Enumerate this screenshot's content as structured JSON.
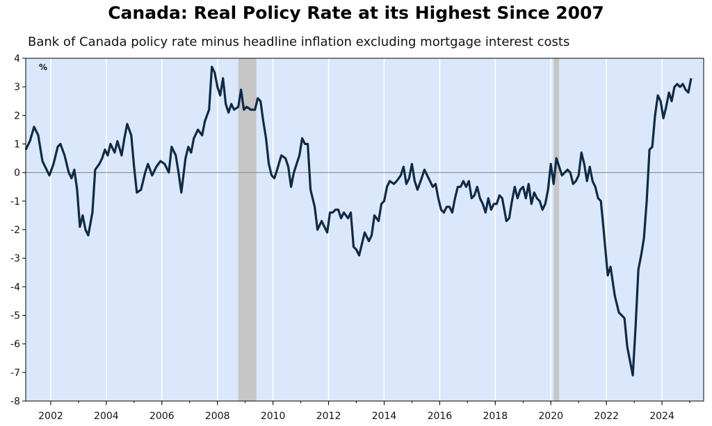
{
  "chart_data": {
    "type": "line",
    "title": "Canada: Real Policy Rate at its Highest Since 2007",
    "subtitle": "Bank of Canada policy rate minus headline inflation excluding mortgage interest costs",
    "unit_label": "%",
    "xlim": [
      2001.1,
      2025.5
    ],
    "ylim": [
      -8,
      4
    ],
    "y_ticks": [
      4,
      3,
      2,
      1,
      0,
      -1,
      -2,
      -3,
      -4,
      -5,
      -6,
      -7,
      -8
    ],
    "x_tick_labels": [
      "2002",
      "2004",
      "2006",
      "2008",
      "2010",
      "2012",
      "2014",
      "2016",
      "2018",
      "2020",
      "2022",
      "2024"
    ],
    "grid": "vertical lines at each year label",
    "zero_line": true,
    "colors": {
      "background": "#dbe8fb",
      "line": "#0f2a44",
      "recession": "#c6c6c6",
      "zero_line": "#888888"
    },
    "recession_shading": [
      {
        "start": 2008.75,
        "end": 2009.4
      },
      {
        "start": 2020.1,
        "end": 2020.3
      }
    ],
    "series": [
      {
        "values": [
          [
            2001.1,
            0.8
          ],
          [
            2001.25,
            1.1
          ],
          [
            2001.4,
            1.6
          ],
          [
            2001.55,
            1.3
          ],
          [
            2001.7,
            0.4
          ],
          [
            2001.85,
            0.1
          ],
          [
            2001.95,
            -0.1
          ],
          [
            2002.1,
            0.3
          ],
          [
            2002.25,
            0.9
          ],
          [
            2002.35,
            1.0
          ],
          [
            2002.5,
            0.6
          ],
          [
            2002.65,
            0.0
          ],
          [
            2002.75,
            -0.2
          ],
          [
            2002.85,
            0.1
          ],
          [
            2002.95,
            -0.6
          ],
          [
            2003.05,
            -1.9
          ],
          [
            2003.15,
            -1.5
          ],
          [
            2003.25,
            -2.0
          ],
          [
            2003.35,
            -2.2
          ],
          [
            2003.5,
            -1.4
          ],
          [
            2003.6,
            0.1
          ],
          [
            2003.75,
            0.3
          ],
          [
            2003.85,
            0.5
          ],
          [
            2003.95,
            0.8
          ],
          [
            2004.05,
            0.6
          ],
          [
            2004.15,
            1.0
          ],
          [
            2004.3,
            0.7
          ],
          [
            2004.4,
            1.1
          ],
          [
            2004.55,
            0.6
          ],
          [
            2004.65,
            1.2
          ],
          [
            2004.75,
            1.7
          ],
          [
            2004.9,
            1.3
          ],
          [
            2005.0,
            0.2
          ],
          [
            2005.1,
            -0.7
          ],
          [
            2005.25,
            -0.6
          ],
          [
            2005.4,
            0.0
          ],
          [
            2005.5,
            0.3
          ],
          [
            2005.65,
            -0.1
          ],
          [
            2005.8,
            0.2
          ],
          [
            2005.95,
            0.4
          ],
          [
            2006.1,
            0.3
          ],
          [
            2006.25,
            0.0
          ],
          [
            2006.35,
            0.9
          ],
          [
            2006.5,
            0.6
          ],
          [
            2006.6,
            0.0
          ],
          [
            2006.7,
            -0.7
          ],
          [
            2006.85,
            0.5
          ],
          [
            2006.95,
            0.9
          ],
          [
            2007.05,
            0.7
          ],
          [
            2007.15,
            1.2
          ],
          [
            2007.3,
            1.5
          ],
          [
            2007.45,
            1.3
          ],
          [
            2007.55,
            1.8
          ],
          [
            2007.7,
            2.2
          ],
          [
            2007.8,
            3.7
          ],
          [
            2007.9,
            3.5
          ],
          [
            2008.0,
            3.0
          ],
          [
            2008.1,
            2.7
          ],
          [
            2008.2,
            3.3
          ],
          [
            2008.3,
            2.4
          ],
          [
            2008.4,
            2.1
          ],
          [
            2008.5,
            2.4
          ],
          [
            2008.6,
            2.2
          ],
          [
            2008.75,
            2.3
          ],
          [
            2008.85,
            2.9
          ],
          [
            2008.95,
            2.2
          ],
          [
            2009.05,
            2.3
          ],
          [
            2009.2,
            2.2
          ],
          [
            2009.35,
            2.2
          ],
          [
            2009.45,
            2.6
          ],
          [
            2009.55,
            2.5
          ],
          [
            2009.65,
            1.8
          ],
          [
            2009.75,
            1.2
          ],
          [
            2009.85,
            0.3
          ],
          [
            2009.95,
            -0.1
          ],
          [
            2010.05,
            -0.2
          ],
          [
            2010.15,
            0.1
          ],
          [
            2010.3,
            0.6
          ],
          [
            2010.45,
            0.5
          ],
          [
            2010.55,
            0.2
          ],
          [
            2010.65,
            -0.5
          ],
          [
            2010.75,
            0.0
          ],
          [
            2010.85,
            0.3
          ],
          [
            2010.95,
            0.6
          ],
          [
            2011.05,
            1.2
          ],
          [
            2011.15,
            1.0
          ],
          [
            2011.25,
            1.0
          ],
          [
            2011.35,
            -0.6
          ],
          [
            2011.5,
            -1.2
          ],
          [
            2011.6,
            -2.0
          ],
          [
            2011.75,
            -1.7
          ],
          [
            2011.85,
            -1.9
          ],
          [
            2011.95,
            -2.1
          ],
          [
            2012.05,
            -1.4
          ],
          [
            2012.15,
            -1.4
          ],
          [
            2012.25,
            -1.3
          ],
          [
            2012.35,
            -1.3
          ],
          [
            2012.45,
            -1.6
          ],
          [
            2012.55,
            -1.4
          ],
          [
            2012.7,
            -1.6
          ],
          [
            2012.8,
            -1.4
          ],
          [
            2012.9,
            -2.6
          ],
          [
            2013.0,
            -2.7
          ],
          [
            2013.1,
            -2.9
          ],
          [
            2013.2,
            -2.5
          ],
          [
            2013.3,
            -2.1
          ],
          [
            2013.45,
            -2.4
          ],
          [
            2013.55,
            -2.2
          ],
          [
            2013.65,
            -1.5
          ],
          [
            2013.8,
            -1.7
          ],
          [
            2013.9,
            -1.1
          ],
          [
            2014.0,
            -1.0
          ],
          [
            2014.1,
            -0.5
          ],
          [
            2014.2,
            -0.3
          ],
          [
            2014.35,
            -0.4
          ],
          [
            2014.45,
            -0.3
          ],
          [
            2014.6,
            -0.1
          ],
          [
            2014.7,
            0.2
          ],
          [
            2014.8,
            -0.4
          ],
          [
            2014.9,
            -0.2
          ],
          [
            2015.0,
            0.3
          ],
          [
            2015.1,
            -0.3
          ],
          [
            2015.2,
            -0.6
          ],
          [
            2015.35,
            -0.2
          ],
          [
            2015.45,
            0.1
          ],
          [
            2015.55,
            -0.1
          ],
          [
            2015.65,
            -0.3
          ],
          [
            2015.75,
            -0.5
          ],
          [
            2015.85,
            -0.4
          ],
          [
            2015.95,
            -0.9
          ],
          [
            2016.05,
            -1.3
          ],
          [
            2016.15,
            -1.4
          ],
          [
            2016.25,
            -1.2
          ],
          [
            2016.35,
            -1.2
          ],
          [
            2016.45,
            -1.4
          ],
          [
            2016.55,
            -0.9
          ],
          [
            2016.65,
            -0.5
          ],
          [
            2016.75,
            -0.5
          ],
          [
            2016.85,
            -0.3
          ],
          [
            2016.95,
            -0.5
          ],
          [
            2017.05,
            -0.3
          ],
          [
            2017.15,
            -0.9
          ],
          [
            2017.25,
            -0.8
          ],
          [
            2017.35,
            -0.5
          ],
          [
            2017.45,
            -0.9
          ],
          [
            2017.55,
            -1.1
          ],
          [
            2017.65,
            -1.4
          ],
          [
            2017.75,
            -0.9
          ],
          [
            2017.85,
            -1.3
          ],
          [
            2017.95,
            -1.1
          ],
          [
            2018.05,
            -1.1
          ],
          [
            2018.15,
            -0.8
          ],
          [
            2018.25,
            -0.9
          ],
          [
            2018.4,
            -1.7
          ],
          [
            2018.5,
            -1.6
          ],
          [
            2018.6,
            -1.0
          ],
          [
            2018.7,
            -0.5
          ],
          [
            2018.8,
            -0.9
          ],
          [
            2018.9,
            -0.6
          ],
          [
            2019.0,
            -0.5
          ],
          [
            2019.1,
            -0.9
          ],
          [
            2019.2,
            -0.4
          ],
          [
            2019.3,
            -1.1
          ],
          [
            2019.4,
            -0.7
          ],
          [
            2019.5,
            -0.9
          ],
          [
            2019.6,
            -1.0
          ],
          [
            2019.7,
            -1.3
          ],
          [
            2019.8,
            -1.1
          ],
          [
            2019.9,
            -0.6
          ],
          [
            2020.0,
            0.3
          ],
          [
            2020.1,
            -0.4
          ],
          [
            2020.2,
            0.5
          ],
          [
            2020.3,
            0.2
          ],
          [
            2020.4,
            -0.1
          ],
          [
            2020.5,
            0.0
          ],
          [
            2020.6,
            0.1
          ],
          [
            2020.7,
            0.0
          ],
          [
            2020.8,
            -0.4
          ],
          [
            2020.9,
            -0.3
          ],
          [
            2021.0,
            -0.1
          ],
          [
            2021.1,
            0.7
          ],
          [
            2021.2,
            0.3
          ],
          [
            2021.3,
            -0.3
          ],
          [
            2021.4,
            0.2
          ],
          [
            2021.5,
            -0.3
          ],
          [
            2021.6,
            -0.5
          ],
          [
            2021.7,
            -0.9
          ],
          [
            2021.8,
            -1.0
          ],
          [
            2021.9,
            -2.0
          ],
          [
            2022.05,
            -3.6
          ],
          [
            2022.15,
            -3.3
          ],
          [
            2022.3,
            -4.3
          ],
          [
            2022.45,
            -4.9
          ],
          [
            2022.55,
            -5.0
          ],
          [
            2022.65,
            -5.1
          ],
          [
            2022.75,
            -6.1
          ],
          [
            2022.85,
            -6.6
          ],
          [
            2022.95,
            -7.1
          ],
          [
            2023.05,
            -5.4
          ],
          [
            2023.15,
            -3.4
          ],
          [
            2023.25,
            -2.9
          ],
          [
            2023.35,
            -2.3
          ],
          [
            2023.45,
            -1.0
          ],
          [
            2023.55,
            0.8
          ],
          [
            2023.65,
            0.9
          ],
          [
            2023.75,
            2.0
          ],
          [
            2023.85,
            2.7
          ],
          [
            2023.95,
            2.5
          ],
          [
            2024.05,
            1.9
          ],
          [
            2024.15,
            2.3
          ],
          [
            2024.25,
            2.8
          ],
          [
            2024.35,
            2.5
          ],
          [
            2024.45,
            3.0
          ],
          [
            2024.55,
            3.1
          ],
          [
            2024.65,
            3.0
          ],
          [
            2024.75,
            3.1
          ],
          [
            2024.85,
            2.9
          ],
          [
            2024.95,
            2.8
          ],
          [
            2025.05,
            3.3
          ]
        ]
      }
    ]
  }
}
